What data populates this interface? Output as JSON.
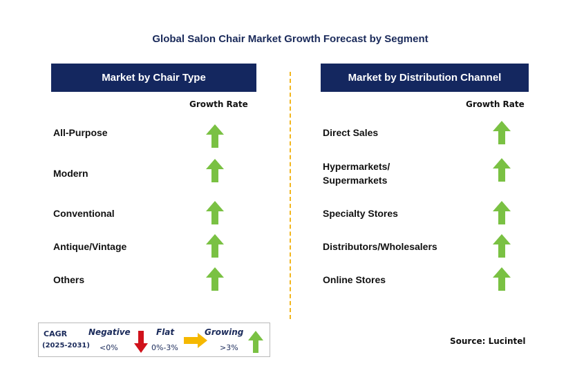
{
  "title": "Global Salon Chair Market Growth Forecast by Segment",
  "left_panel": {
    "header": "Market by Chair Type",
    "growth_header": "Growth Rate",
    "rows": [
      {
        "label": "All-Purpose",
        "trend": "growing"
      },
      {
        "label": "Modern",
        "trend": "growing"
      },
      {
        "label": "Conventional",
        "trend": "growing"
      },
      {
        "label": "Antique/Vintage",
        "trend": "growing"
      },
      {
        "label": "Others",
        "trend": "growing"
      }
    ]
  },
  "right_panel": {
    "header": "Market by Distribution Channel",
    "growth_header": "Growth Rate",
    "rows": [
      {
        "label": "Direct Sales",
        "trend": "growing"
      },
      {
        "label_line1": "Hypermarkets/",
        "label_line2": "Supermarkets",
        "trend": "growing"
      },
      {
        "label": "Specialty Stores",
        "trend": "growing"
      },
      {
        "label": "Distributors/Wholesalers",
        "trend": "growing"
      },
      {
        "label": "Online Stores",
        "trend": "growing"
      }
    ]
  },
  "legend": {
    "cagr": "CAGR",
    "period": "(2025-2031)",
    "negative_label": "Negative",
    "negative_range": "<0%",
    "flat_label": "Flat",
    "flat_range": "0%-3%",
    "growing_label": "Growing",
    "growing_range": ">3%"
  },
  "source": "Source: Lucintel",
  "colors": {
    "header_bg": "#14275f",
    "growing_arrow": "#7ac143",
    "negative_arrow": "#d0121b",
    "flat_arrow": "#f5b800",
    "divider": "#f2b51c"
  }
}
